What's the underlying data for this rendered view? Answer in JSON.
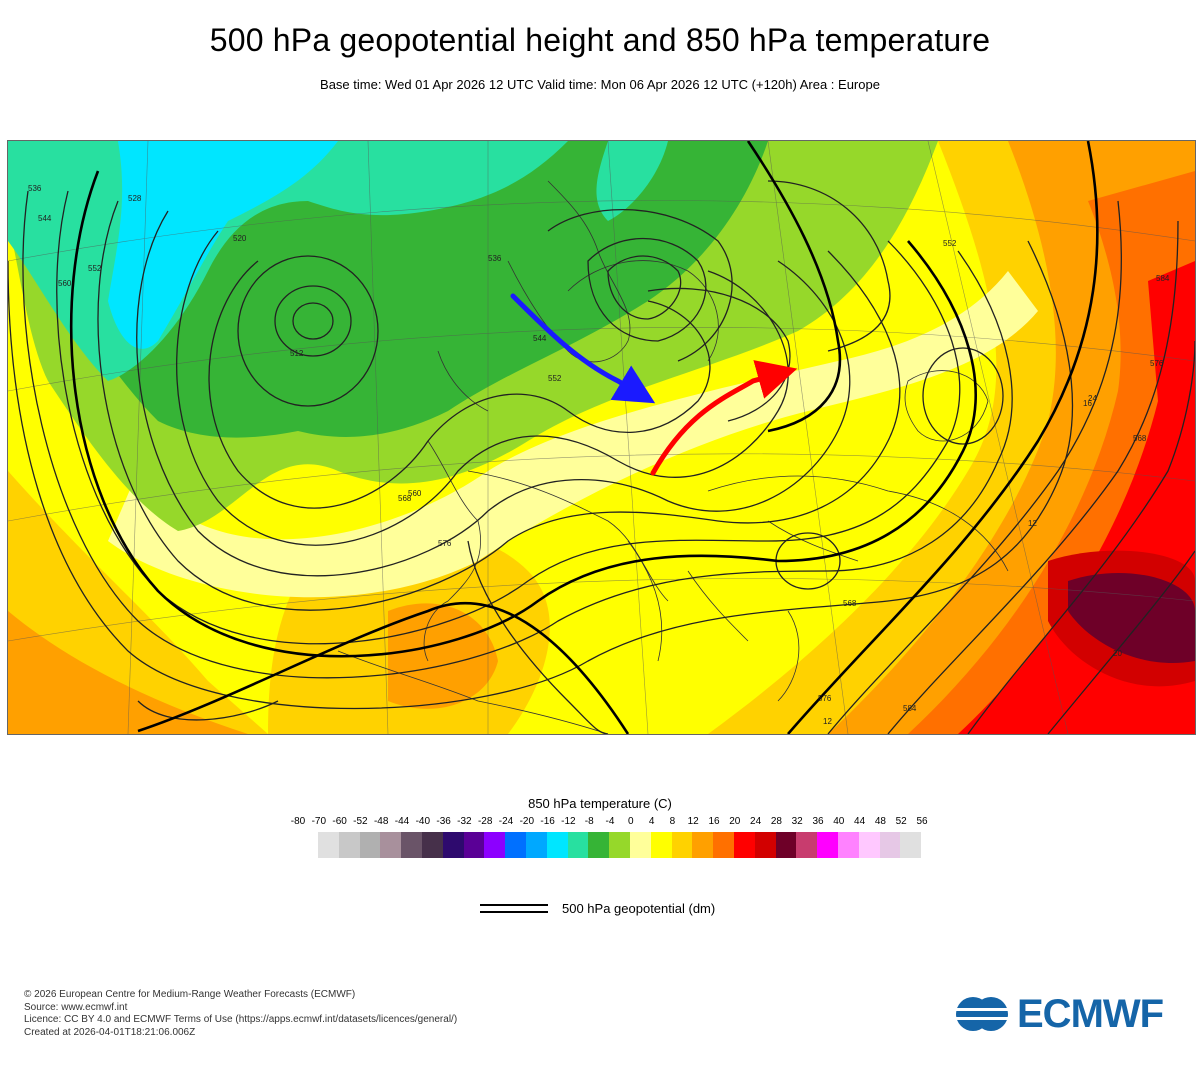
{
  "header": {
    "title": "500 hPa geopotential height and 850 hPa temperature",
    "subtitle": "Base time: Wed 01 Apr 2026 12 UTC Valid time: Mon 06 Apr 2026 12 UTC (+120h) Area : Europe"
  },
  "map": {
    "contour_labels": [
      {
        "text": "536"
      },
      {
        "text": "544"
      },
      {
        "text": "552"
      },
      {
        "text": "560"
      },
      {
        "text": "512"
      },
      {
        "text": "520"
      },
      {
        "text": "528"
      },
      {
        "text": "536"
      },
      {
        "text": "544"
      },
      {
        "text": "552"
      },
      {
        "text": "560"
      },
      {
        "text": "568"
      },
      {
        "text": "576"
      },
      {
        "text": "584"
      },
      {
        "text": "576"
      },
      {
        "text": "568"
      },
      {
        "text": "552"
      },
      {
        "text": "576"
      },
      {
        "text": "584"
      },
      {
        "text": "568"
      }
    ],
    "temperature_labels": [
      {
        "text": "12"
      },
      {
        "text": "16"
      },
      {
        "text": "20"
      },
      {
        "text": "24"
      },
      {
        "text": "12"
      }
    ],
    "annotations": {
      "cold_arrow_color": "#1a1aff",
      "warm_arrow_color": "#ff0000"
    }
  },
  "legend": {
    "title": "850 hPa temperature (C)",
    "ticks": [
      "-80",
      "-70",
      "-60",
      "-52",
      "-48",
      "-44",
      "-40",
      "-36",
      "-32",
      "-28",
      "-24",
      "-20",
      "-16",
      "-12",
      "-8",
      "-4",
      "0",
      "4",
      "8",
      "12",
      "16",
      "20",
      "24",
      "28",
      "32",
      "36",
      "40",
      "44",
      "48",
      "52",
      "56"
    ],
    "colors": [
      "#e0e0e0",
      "#c8c8c8",
      "#b0b0b0",
      "#a8909c",
      "#6a5468",
      "#46304a",
      "#2e0a6e",
      "#5a0096",
      "#8c00ff",
      "#0070ff",
      "#00a8ff",
      "#00e6ff",
      "#28e0a0",
      "#36b436",
      "#96d82a",
      "#ffff9a",
      "#ffff00",
      "#ffd200",
      "#ffa000",
      "#ff7000",
      "#ff0000",
      "#d20000",
      "#6e0028",
      "#c83c6e",
      "#ff00ff",
      "#ff82ff",
      "#ffc8ff",
      "#e6c8e6",
      "#e0e0e0"
    ],
    "contour_label": "500 hPa geopotential (dm)"
  },
  "footer": {
    "credits": [
      "© 2026 European Centre for Medium-Range Weather Forecasts (ECMWF)",
      "Source: www.ecmwf.int",
      "Licence: CC BY 4.0 and ECMWF Terms of Use (https://apps.ecmwf.int/datasets/licences/general/)",
      "Created at 2026-04-01T18:21:06.006Z"
    ],
    "logo_text": "ECMWF",
    "logo_color": "#1565a8"
  }
}
